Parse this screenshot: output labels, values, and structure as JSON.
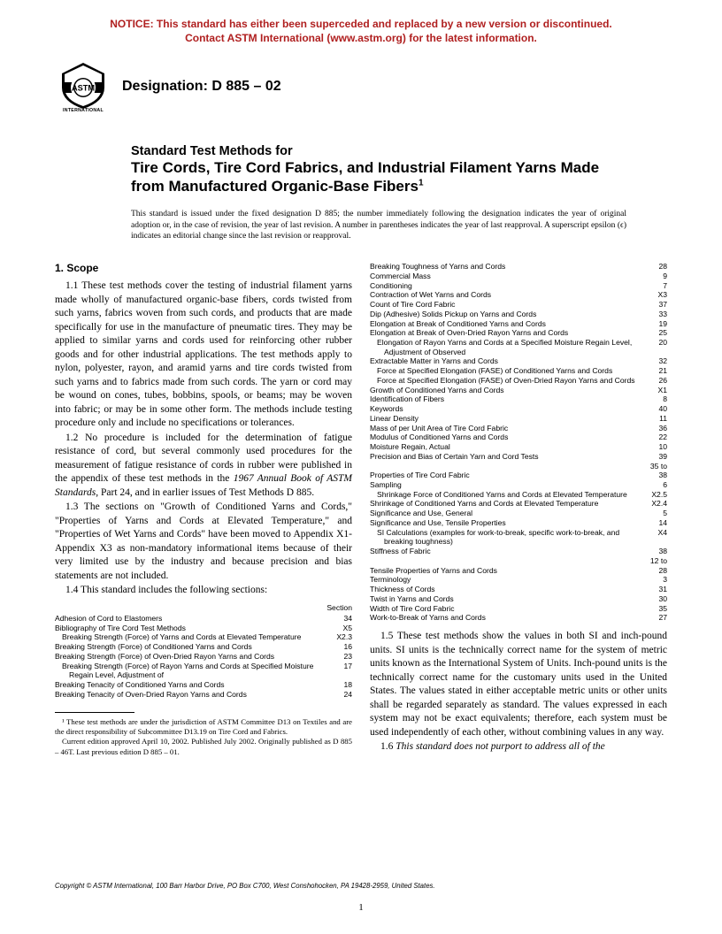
{
  "notice": {
    "line1": "NOTICE: This standard has either been superceded and replaced by a new version or discontinued.",
    "line2": "Contact ASTM International (www.astm.org) for the latest information.",
    "color": "#b02020"
  },
  "logo": {
    "label_top": "ASTM",
    "label_bottom": "INTERNATIONAL"
  },
  "designation": "Designation: D 885 – 02",
  "title": {
    "pre": "Standard Test Methods for",
    "main": "Tire Cords, Tire Cord Fabrics, and Industrial Filament Yarns Made from Manufactured Organic-Base Fibers",
    "sup": "1"
  },
  "issuance": "This standard is issued under the fixed designation D 885; the number immediately following the designation indicates the year of original adoption or, in the case of revision, the year of last revision. A number in parentheses indicates the year of last reapproval. A superscript epsilon (ϵ) indicates an editorial change since the last revision or reapproval.",
  "scope_head": "1. Scope",
  "paras": {
    "p11": "1.1 These test methods cover the testing of industrial filament yarns made wholly of manufactured organic-base fibers, cords twisted from such yarns, fabrics woven from such cords, and products that are made specifically for use in the manufacture of pneumatic tires. They may be applied to similar yarns and cords used for reinforcing other rubber goods and for other industrial applications. The test methods apply to nylon, polyester, rayon, and aramid yarns and tire cords twisted from such yarns and to fabrics made from such cords. The yarn or cord may be wound on cones, tubes, bobbins, spools, or beams; may be woven into fabric; or may be in some other form. The methods include testing procedure only and include no specifications or tolerances.",
    "p12a": "1.2 No procedure is included for the determination of fatigue resistance of cord, but several commonly used procedures for the measurement of fatigue resistance of cords in rubber were published in the appendix of these test methods in the ",
    "p12b": "1967 Annual Book of ASTM Standards",
    "p12c": ", Part 24, and in earlier issues of Test Methods D 885.",
    "p13": "1.3 The sections on \"Growth of Conditioned Yarns and Cords,\" \"Properties of Yarns and Cords at Elevated Temperature,\" and \"Properties of Wet Yarns and Cords\" have been moved to Appendix X1-Appendix X3 as non-mandatory informational items because of their very limited use by the industry and because precision and bias statements are not included.",
    "p14": "1.4 This standard includes the following sections:",
    "p15": "1.5 These test methods show the values in both SI and inch-pound units. SI units is the technically correct name for the system of metric units known as the International System of Units. Inch-pound units is the technically correct name for the customary units used in the United States. The values stated in either acceptable metric units or other units shall be regarded separately as standard. The values expressed in each system may not be exact equivalents; therefore, each system must be used independently of each other, without combining values in any way.",
    "p16a": "1.6 ",
    "p16b": "This standard does not purport to address all of the"
  },
  "toc_header": "Section",
  "toc_left": [
    {
      "label": "Adhesion of Cord to Elastomers",
      "num": "34"
    },
    {
      "label": "Bibliography of Tire Cord Test Methods",
      "num": "X5"
    },
    {
      "label": "Breaking Strength (Force) of Yarns and Cords at Elevated Temperature",
      "num": "X2.3",
      "indent": true
    },
    {
      "label": "Breaking Strength (Force) of Conditioned Yarns and Cords",
      "num": "16"
    },
    {
      "label": "Breaking Strength (Force) of Oven-Dried Rayon Yarns and Cords",
      "num": "23"
    },
    {
      "label": "Breaking Strength (Force) of Rayon Yarns and Cords at Specified Moisture Regain Level, Adjustment of",
      "num": "17",
      "indent": true
    },
    {
      "label": "Breaking Tenacity of Conditioned Yarns and Cords",
      "num": "18"
    },
    {
      "label": "Breaking Tenacity of Oven-Dried Rayon Yarns and Cords",
      "num": "24"
    }
  ],
  "toc_right": [
    {
      "label": "Breaking Toughness of Yarns and Cords",
      "num": "28"
    },
    {
      "label": "Commercial Mass",
      "num": "9"
    },
    {
      "label": "Conditioning",
      "num": "7"
    },
    {
      "label": "Contraction of Wet Yarns and Cords",
      "num": "X3"
    },
    {
      "label": "Count of Tire Cord Fabric",
      "num": "37"
    },
    {
      "label": "Dip (Adhesive) Solids Pickup on Yarns and Cords",
      "num": "33"
    },
    {
      "label": "Elongation at Break of Conditioned Yarns and Cords",
      "num": "19"
    },
    {
      "label": "Elongation at Break of Oven-Dried Rayon Yarns and Cords",
      "num": "25"
    },
    {
      "label": "Elongation of Rayon Yarns and Cords at a Specified Moisture Regain Level, Adjustment of Observed",
      "num": "20",
      "indent": true
    },
    {
      "label": "Extractable Matter in Yarns and Cords",
      "num": "32"
    },
    {
      "label": "Force at Specified Elongation (FASE) of Conditioned Yarns and Cords",
      "num": "21",
      "indent": true
    },
    {
      "label": "Force at Specified Elongation (FASE) of Oven-Dried Rayon Yarns and Cords",
      "num": "26",
      "indent": true
    },
    {
      "label": "Growth of Conditioned Yarns and Cords",
      "num": "X1"
    },
    {
      "label": "Identification of Fibers",
      "num": "8"
    },
    {
      "label": "Keywords",
      "num": "40"
    },
    {
      "label": "Linear Density",
      "num": "11"
    },
    {
      "label": "Mass of per Unit Area of Tire Cord Fabric",
      "num": "36"
    },
    {
      "label": "Modulus of Conditioned Yarns and Cords",
      "num": "22"
    },
    {
      "label": "Moisture Regain, Actual",
      "num": "10"
    },
    {
      "label": "Precision and Bias of Certain Yarn and Cord Tests",
      "num": "39"
    },
    {
      "label": "",
      "num": "35 to"
    },
    {
      "label": "Properties of Tire Cord Fabric",
      "num": "38"
    },
    {
      "label": "Sampling",
      "num": "6"
    },
    {
      "label": "Shrinkage Force of Conditioned Yarns and Cords at Elevated Temperature",
      "num": "X2.5",
      "indent": true
    },
    {
      "label": "Shrinkage of Conditioned Yarns and Cords at Elevated Temperature",
      "num": "X2.4"
    },
    {
      "label": "Significance and Use, General",
      "num": "5"
    },
    {
      "label": "Significance and Use, Tensile Properties",
      "num": "14"
    },
    {
      "label": "SI Calculations (examples for work-to-break, specific work-to-break, and breaking toughness)",
      "num": "X4",
      "indent": true
    },
    {
      "label": "Stiffness of Fabric",
      "num": "38"
    },
    {
      "label": "",
      "num": "12 to"
    },
    {
      "label": "Tensile Properties of Yarns and Cords",
      "num": "28"
    },
    {
      "label": "Terminology",
      "num": "3"
    },
    {
      "label": "Thickness of Cords",
      "num": "31"
    },
    {
      "label": "Twist in Yarns and Cords",
      "num": "30"
    },
    {
      "label": "Width of Tire Cord Fabric",
      "num": "35"
    },
    {
      "label": "Work-to-Break of Yarns and Cords",
      "num": "27"
    }
  ],
  "footnotes": {
    "f1": "¹ These test methods are under the jurisdiction of ASTM Committee D13 on Textiles and are the direct responsibility of Subcommittee D13.19 on Tire Cord and Fabrics.",
    "f2": "Current edition approved April 10, 2002. Published July 2002. Originally published as D 885 – 46T. Last previous edition D 885 – 01."
  },
  "copyright": "Copyright © ASTM International, 100 Barr Harbor Drive, PO Box C700, West Conshohocken, PA 19428-2959, United States.",
  "pagenum": "1"
}
